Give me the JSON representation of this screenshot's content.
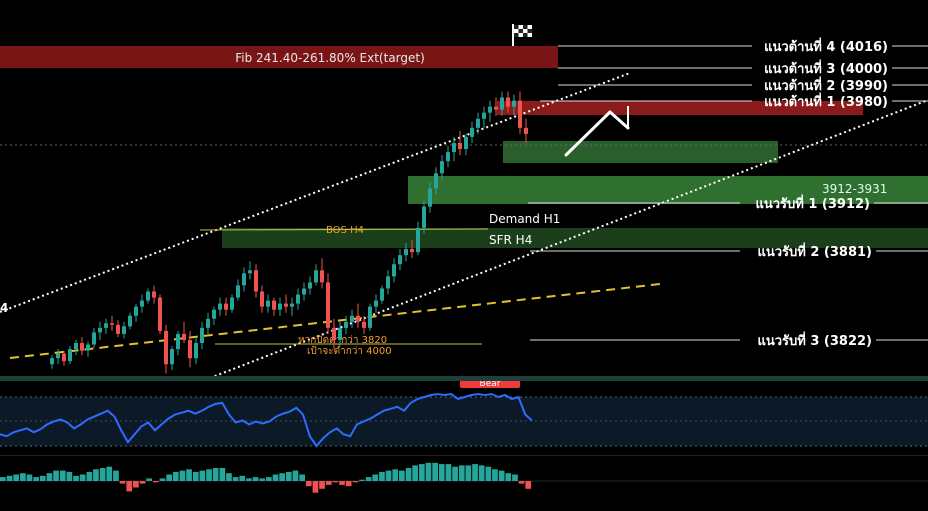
{
  "colors": {
    "background": "#000000",
    "bull": "#26a69a",
    "bear": "#ef5350",
    "resistance_zone": "#8b1a1a",
    "support_zone": "#2e6b2e",
    "trend_line": "#ffffff",
    "bos_line": "#c8c040",
    "ema_dash": "#e6c229",
    "rsi_line": "#2f6bff",
    "osc_pos": "#26a69a",
    "osc_neg": "#ef5350",
    "annotation": "#f0a030"
  },
  "chart_data": {
    "type": "candlestick",
    "title": "",
    "resistance_zone_label": "Fib 241.40-261.80% Ext(target)",
    "levels": [
      {
        "name": "resistance-4",
        "label": "แนวต้านที่ 4 (4016)",
        "price": 4016
      },
      {
        "name": "resistance-3",
        "label": "แนวต้านที่ 3 (4000)",
        "price": 4000
      },
      {
        "name": "resistance-2",
        "label": "แนวต้านที่ 2 (3990)",
        "price": 3990
      },
      {
        "name": "resistance-1",
        "label": "แนวต้านที่ 1 (3980)",
        "price": 3980
      },
      {
        "name": "support-1",
        "label": "แนวรับที่ 1 (3912)",
        "price": 3912
      },
      {
        "name": "support-2",
        "label": "แนวรับที่ 2 (3881)",
        "price": 3881
      },
      {
        "name": "support-3",
        "label": "แนวรับที่ 3 (3822)",
        "price": 3822
      }
    ],
    "zones": [
      {
        "name": "demand-h1",
        "label": "Demand H1",
        "range": "3912-3931"
      },
      {
        "name": "sfr-h4",
        "label": "SFR H4"
      }
    ],
    "annotations": {
      "bos": "BOS H4",
      "break_below": "หากปิดต่ำกว่า 3820",
      "target": "เป้าจะต่ำกว่า 4000",
      "left_marker": "4",
      "bar_marker": "Bear"
    },
    "candles": [
      [
        3806,
        3812,
        3803,
        3810
      ],
      [
        3810,
        3816,
        3806,
        3813
      ],
      [
        3813,
        3815,
        3805,
        3808
      ],
      [
        3808,
        3818,
        3806,
        3816
      ],
      [
        3816,
        3822,
        3812,
        3820
      ],
      [
        3820,
        3824,
        3812,
        3815
      ],
      [
        3815,
        3821,
        3811,
        3819
      ],
      [
        3819,
        3830,
        3817,
        3827
      ],
      [
        3827,
        3834,
        3822,
        3830
      ],
      [
        3830,
        3836,
        3826,
        3833
      ],
      [
        3833,
        3838,
        3828,
        3832
      ],
      [
        3832,
        3835,
        3824,
        3826
      ],
      [
        3826,
        3834,
        3823,
        3831
      ],
      [
        3831,
        3840,
        3829,
        3838
      ],
      [
        3838,
        3846,
        3834,
        3844
      ],
      [
        3844,
        3852,
        3840,
        3848
      ],
      [
        3848,
        3856,
        3846,
        3854
      ],
      [
        3854,
        3858,
        3846,
        3850
      ],
      [
        3850,
        3852,
        3826,
        3828
      ],
      [
        3828,
        3832,
        3800,
        3806
      ],
      [
        3806,
        3818,
        3802,
        3816
      ],
      [
        3816,
        3828,
        3812,
        3826
      ],
      [
        3826,
        3834,
        3820,
        3822
      ],
      [
        3822,
        3828,
        3804,
        3810
      ],
      [
        3810,
        3824,
        3806,
        3820
      ],
      [
        3820,
        3834,
        3816,
        3830
      ],
      [
        3830,
        3840,
        3826,
        3836
      ],
      [
        3836,
        3844,
        3832,
        3842
      ],
      [
        3842,
        3850,
        3838,
        3846
      ],
      [
        3846,
        3850,
        3838,
        3842
      ],
      [
        3842,
        3852,
        3840,
        3850
      ],
      [
        3850,
        3862,
        3848,
        3858
      ],
      [
        3858,
        3870,
        3854,
        3866
      ],
      [
        3866,
        3874,
        3862,
        3868
      ],
      [
        3868,
        3872,
        3850,
        3854
      ],
      [
        3854,
        3858,
        3840,
        3844
      ],
      [
        3844,
        3852,
        3840,
        3848
      ],
      [
        3848,
        3850,
        3838,
        3842
      ],
      [
        3842,
        3850,
        3838,
        3846
      ],
      [
        3846,
        3852,
        3840,
        3844
      ],
      [
        3844,
        3850,
        3838,
        3846
      ],
      [
        3846,
        3856,
        3842,
        3852
      ],
      [
        3852,
        3860,
        3848,
        3856
      ],
      [
        3856,
        3864,
        3852,
        3860
      ],
      [
        3860,
        3872,
        3858,
        3868
      ],
      [
        3868,
        3876,
        3856,
        3860
      ],
      [
        3860,
        3866,
        3826,
        3830
      ],
      [
        3830,
        3836,
        3816,
        3822
      ],
      [
        3822,
        3834,
        3818,
        3830
      ],
      [
        3830,
        3838,
        3826,
        3834
      ],
      [
        3834,
        3842,
        3830,
        3838
      ],
      [
        3838,
        3846,
        3830,
        3834
      ],
      [
        3834,
        3838,
        3826,
        3830
      ],
      [
        3830,
        3846,
        3828,
        3844
      ],
      [
        3844,
        3852,
        3840,
        3848
      ],
      [
        3848,
        3858,
        3846,
        3856
      ],
      [
        3856,
        3868,
        3852,
        3864
      ],
      [
        3864,
        3876,
        3860,
        3872
      ],
      [
        3872,
        3882,
        3868,
        3878
      ],
      [
        3878,
        3886,
        3874,
        3882
      ],
      [
        3882,
        3888,
        3876,
        3880
      ],
      [
        3880,
        3900,
        3878,
        3896
      ],
      [
        3896,
        3914,
        3892,
        3910
      ],
      [
        3910,
        3926,
        3906,
        3922
      ],
      [
        3922,
        3936,
        3918,
        3932
      ],
      [
        3932,
        3944,
        3928,
        3940
      ],
      [
        3940,
        3950,
        3936,
        3946
      ],
      [
        3946,
        3956,
        3940,
        3952
      ],
      [
        3952,
        3960,
        3944,
        3948
      ],
      [
        3948,
        3958,
        3944,
        3956
      ],
      [
        3956,
        3966,
        3952,
        3962
      ],
      [
        3962,
        3972,
        3958,
        3968
      ],
      [
        3968,
        3976,
        3962,
        3972
      ],
      [
        3972,
        3980,
        3966,
        3976
      ],
      [
        3976,
        3982,
        3970,
        3974
      ],
      [
        3974,
        3986,
        3970,
        3982
      ],
      [
        3982,
        3986,
        3972,
        3976
      ],
      [
        3976,
        3984,
        3970,
        3980
      ],
      [
        3980,
        3986,
        3958,
        3962
      ],
      [
        3962,
        3968,
        3952,
        3958
      ]
    ],
    "rsi": [
      42,
      40,
      44,
      46,
      48,
      44,
      47,
      52,
      55,
      57,
      54,
      48,
      52,
      57,
      60,
      63,
      66,
      60,
      46,
      34,
      42,
      50,
      54,
      46,
      52,
      58,
      62,
      64,
      66,
      63,
      66,
      70,
      73,
      74,
      62,
      54,
      56,
      52,
      55,
      53,
      55,
      60,
      63,
      65,
      69,
      62,
      40,
      30,
      38,
      44,
      48,
      42,
      40,
      52,
      55,
      58,
      62,
      66,
      68,
      70,
      66,
      74,
      78,
      80,
      82,
      83,
      82,
      83,
      78,
      80,
      82,
      83,
      82,
      83,
      80,
      82,
      78,
      80,
      62,
      56
    ],
    "oscillator": [
      3,
      4,
      5,
      6,
      5,
      3,
      4,
      6,
      8,
      8,
      7,
      4,
      5,
      7,
      9,
      10,
      11,
      8,
      -2,
      -8,
      -5,
      -2,
      2,
      -1,
      2,
      5,
      7,
      8,
      9,
      7,
      8,
      9,
      10,
      10,
      6,
      3,
      4,
      2,
      3,
      2,
      3,
      5,
      6,
      7,
      8,
      5,
      -4,
      -9,
      -6,
      -3,
      -1,
      -3,
      -4,
      -1,
      1,
      3,
      5,
      7,
      8,
      9,
      8,
      10,
      12,
      13,
      14,
      14,
      13,
      13,
      11,
      12,
      12,
      13,
      12,
      11,
      9,
      8,
      6,
      5,
      -2,
      -6
    ]
  }
}
